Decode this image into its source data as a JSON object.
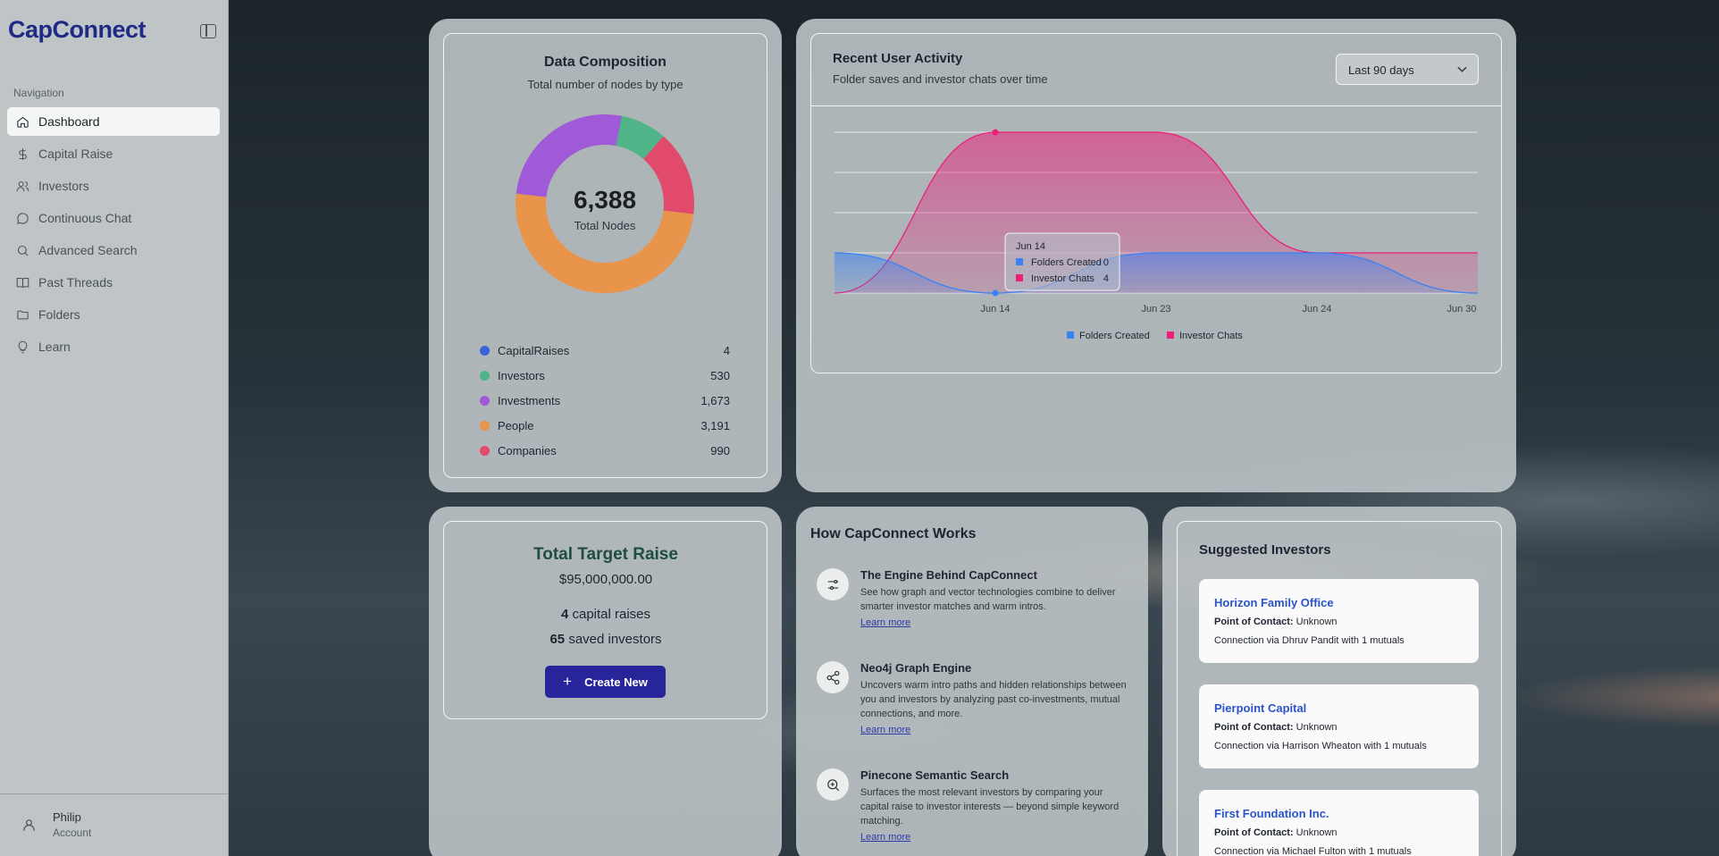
{
  "app": {
    "logo": "CapConnect"
  },
  "sidebar": {
    "heading": "Navigation",
    "items": [
      {
        "label": "Dashboard",
        "icon": "home-icon",
        "active": true
      },
      {
        "label": "Capital Raise",
        "icon": "dollar-icon"
      },
      {
        "label": "Investors",
        "icon": "users-icon"
      },
      {
        "label": "Continuous Chat",
        "icon": "chat-icon"
      },
      {
        "label": "Advanced Search",
        "icon": "search-icon"
      },
      {
        "label": "Past Threads",
        "icon": "book-icon"
      },
      {
        "label": "Folders",
        "icon": "folder-icon"
      },
      {
        "label": "Learn",
        "icon": "lightbulb-icon"
      }
    ],
    "user": {
      "name": "Philip",
      "sub": "Account"
    }
  },
  "composition": {
    "title": "Data Composition",
    "subtitle": "Total number of nodes by type",
    "total": "6,388",
    "total_label": "Total Nodes",
    "items": [
      {
        "name": "CapitalRaises",
        "value": "4",
        "color": "#3a63d6"
      },
      {
        "name": "Investors",
        "value": "530",
        "color": "#4fb487"
      },
      {
        "name": "Investments",
        "value": "1,673",
        "color": "#a05ad8"
      },
      {
        "name": "People",
        "value": "3,191",
        "color": "#e8944a"
      },
      {
        "name": "Companies",
        "value": "990",
        "color": "#e14a6a"
      }
    ]
  },
  "activity": {
    "title": "Recent User Activity",
    "subtitle": "Folder saves and investor chats over time",
    "range": "Last 90 days",
    "tooltip": {
      "date": "Jun 14",
      "folders_label": "Folders Created",
      "folders_value": "0",
      "chats_label": "Investor Chats",
      "chats_value": "4"
    }
  },
  "chart_data": {
    "type": "area",
    "x_ticks": [
      "Jun 14",
      "Jun 23",
      "Jun 24",
      "Jun 30"
    ],
    "ylim": [
      0,
      4
    ],
    "grid": true,
    "legend_position": "bottom",
    "series": [
      {
        "name": "Folders Created",
        "color": "#3b82f6",
        "points": [
          [
            0,
            1
          ],
          [
            0.25,
            0
          ],
          [
            0.5,
            1
          ],
          [
            0.75,
            1
          ],
          [
            1,
            0
          ]
        ]
      },
      {
        "name": "Investor Chats",
        "color": "#ec1f7a",
        "points": [
          [
            0,
            0
          ],
          [
            0.25,
            4
          ],
          [
            0.5,
            4
          ],
          [
            0.75,
            1
          ],
          [
            1,
            1
          ]
        ]
      }
    ]
  },
  "target_raise": {
    "title": "Total Target Raise",
    "amount": "$95,000,000.00",
    "raises_count": "4",
    "raises_label": "capital raises",
    "saved_count": "65",
    "saved_label": "saved investors",
    "button": "Create New"
  },
  "how": {
    "title": "How CapConnect Works",
    "features": [
      {
        "title": "The Engine Behind CapConnect",
        "desc": "See how graph and vector technologies combine to deliver smarter investor matches and warm intros.",
        "link": "Learn more",
        "icon": "sliders-icon"
      },
      {
        "title": "Neo4j Graph Engine",
        "desc": "Uncovers warm intro paths and hidden relationships between you and investors by analyzing past co-investments, mutual connections, and more.",
        "link": "Learn more",
        "icon": "share-icon"
      },
      {
        "title": "Pinecone Semantic Search",
        "desc": "Surfaces the most relevant investors by comparing your capital raise to investor interests — beyond simple keyword matching.",
        "link": "Learn more",
        "icon": "zoom-search-icon"
      }
    ]
  },
  "suggested": {
    "title": "Suggested Investors",
    "poc_label": "Point of Contact:",
    "items": [
      {
        "name": "Horizon Family Office",
        "poc": "Unknown",
        "connection": "Connection via Dhruv Pandit with 1 mutuals"
      },
      {
        "name": "Pierpoint Capital",
        "poc": "Unknown",
        "connection": "Connection via Harrison Wheaton with 1 mutuals"
      },
      {
        "name": "First Foundation Inc.",
        "poc": "Unknown",
        "connection": "Connection via Michael Fulton with 1 mutuals"
      }
    ]
  }
}
